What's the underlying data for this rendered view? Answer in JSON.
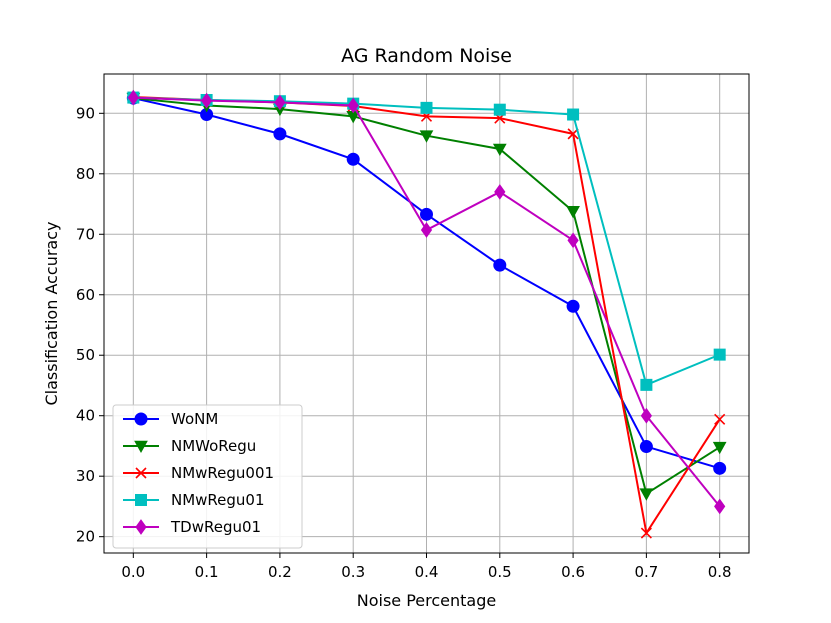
{
  "chart_data": {
    "type": "line",
    "title": "AG Random Noise",
    "xlabel": "Noise Percentage",
    "ylabel": "Classification Accuracy",
    "x": [
      0.0,
      0.1,
      0.2,
      0.3,
      0.4,
      0.5,
      0.6,
      0.7,
      0.8
    ],
    "x_tick_labels": [
      "0.0",
      "0.1",
      "0.2",
      "0.3",
      "0.4",
      "0.5",
      "0.6",
      "0.7",
      "0.8"
    ],
    "y_ticks": [
      20,
      30,
      40,
      50,
      60,
      70,
      80,
      90
    ],
    "xlim": [
      -0.04,
      0.84
    ],
    "ylim": [
      17.3,
      96.5
    ],
    "grid": true,
    "legend_position": "lower-left",
    "series": [
      {
        "name": "WoNM",
        "color": "#0000ff",
        "marker": "circle",
        "values": [
          92.5,
          89.8,
          86.6,
          82.4,
          73.3,
          64.9,
          58.1,
          34.9,
          31.3
        ]
      },
      {
        "name": "NMWoRegu",
        "color": "#008000",
        "marker": "triangle-down",
        "values": [
          92.5,
          91.3,
          90.7,
          89.5,
          86.3,
          84.1,
          73.8,
          27.1,
          34.8
        ]
      },
      {
        "name": "NMwRegu001",
        "color": "#ff0000",
        "marker": "x",
        "values": [
          92.7,
          92.2,
          91.8,
          91.2,
          89.5,
          89.2,
          86.6,
          20.6,
          39.4
        ]
      },
      {
        "name": "NMwRegu01",
        "color": "#00bfbf",
        "marker": "square",
        "values": [
          92.6,
          92.2,
          92.0,
          91.6,
          90.9,
          90.6,
          89.8,
          45.1,
          50.1
        ]
      },
      {
        "name": "TDwRegu01",
        "color": "#bf00bf",
        "marker": "diamond",
        "values": [
          92.6,
          92.1,
          91.8,
          91.3,
          70.7,
          77.0,
          69.0,
          40.0,
          25.0
        ]
      }
    ]
  }
}
